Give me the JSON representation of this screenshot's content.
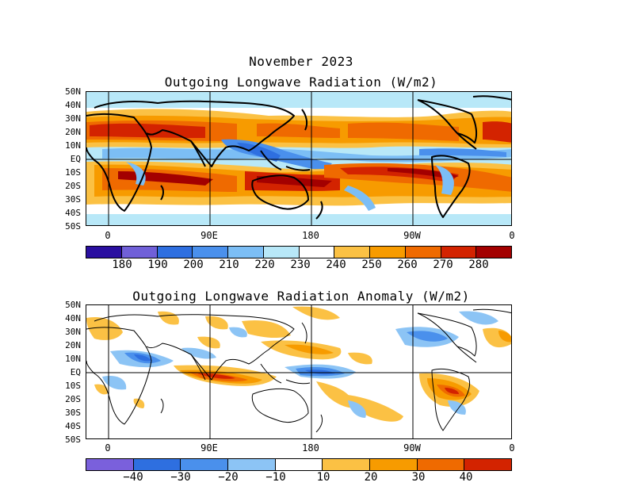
{
  "month_title": "November 2023",
  "top_panel": {
    "title": "Outgoing Longwave Radiation (W/m2)",
    "lat_labels": [
      "50N",
      "40N",
      "30N",
      "20N",
      "10N",
      "EQ",
      "10S",
      "20S",
      "30S",
      "40S",
      "50S"
    ],
    "lon_labels": [
      "0",
      "90E",
      "180",
      "90W",
      "0"
    ],
    "colorbar": {
      "colors": [
        "#2a0fa0",
        "#7060d8",
        "#2e6fe0",
        "#4a90ec",
        "#7cbef5",
        "#b8e8f8",
        "#ffffff",
        "#fbc144",
        "#f79b00",
        "#ef6a00",
        "#d32300",
        "#a30000"
      ],
      "labels": [
        "180",
        "190",
        "200",
        "210",
        "220",
        "230",
        "240",
        "250",
        "260",
        "270",
        "280"
      ]
    }
  },
  "bottom_panel": {
    "title": "Outgoing Longwave Radiation Anomaly (W/m2)",
    "lat_labels": [
      "50N",
      "40N",
      "30N",
      "20N",
      "10N",
      "EQ",
      "10S",
      "20S",
      "30S",
      "40S",
      "50S"
    ],
    "lon_labels": [
      "0",
      "90E",
      "180",
      "90W",
      "0"
    ],
    "colorbar": {
      "colors": [
        "#7a60dc",
        "#2e6fe0",
        "#4a90ec",
        "#8cc4f5",
        "#ffffff",
        "#fbc144",
        "#f79b00",
        "#ef6a00",
        "#d32300"
      ],
      "labels": [
        "−40",
        "−30",
        "−20",
        "−10",
        "10",
        "20",
        "30",
        "40"
      ]
    }
  }
}
